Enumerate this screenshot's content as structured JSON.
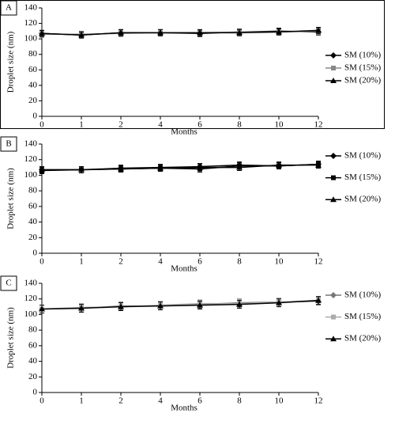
{
  "chart_data": [
    {
      "type": "line",
      "label": "A",
      "y_label": "Droplet size (nm)",
      "x_label": "Months",
      "categories": [
        "0",
        "1",
        "2",
        "4",
        "6",
        "8",
        "10",
        "12"
      ],
      "series": [
        {
          "name": "SM (10%)",
          "color": "#000000",
          "marker": "diamond",
          "values": [
            107,
            105,
            108,
            108,
            107,
            109,
            110,
            109
          ],
          "errors": [
            4,
            4,
            4,
            4,
            4,
            4,
            4,
            4
          ]
        },
        {
          "name": "SM (15%)",
          "color": "#888888",
          "marker": "square",
          "values": [
            106,
            106,
            107,
            108,
            108,
            109,
            109,
            110
          ],
          "errors": [
            4,
            4,
            4,
            4,
            4,
            4,
            4,
            4
          ]
        },
        {
          "name": "SM (20%)",
          "color": "#000000",
          "marker": "triangle",
          "values": [
            107,
            105,
            108,
            108,
            108,
            108,
            109,
            111
          ],
          "errors": [
            4,
            4,
            4,
            4,
            4,
            4,
            4,
            4
          ]
        }
      ],
      "ylim": [
        0,
        140
      ],
      "yticks": [
        0,
        20,
        40,
        60,
        80,
        100,
        120,
        140
      ],
      "legend": "right"
    },
    {
      "type": "line",
      "label": "B",
      "y_label": "Droplet size (nm)",
      "x_label": "Months",
      "categories": [
        "0",
        "1",
        "2",
        "4",
        "6",
        "8",
        "10",
        "12"
      ],
      "series": [
        {
          "name": "SM (10%)",
          "color": "#000000",
          "marker": "diamond",
          "values": [
            107,
            107,
            109,
            110,
            111,
            113,
            112,
            114
          ],
          "errors": [
            4,
            4,
            4,
            4,
            4,
            4,
            4,
            4
          ]
        },
        {
          "name": "SM (15%)",
          "color": "#000000",
          "marker": "square",
          "values": [
            106,
            107,
            108,
            109,
            108,
            112,
            112,
            114
          ],
          "errors": [
            4,
            4,
            4,
            4,
            4,
            4,
            4,
            4
          ]
        },
        {
          "name": "SM (20%)",
          "color": "#000000",
          "marker": "triangle",
          "values": [
            107,
            107,
            108,
            109,
            110,
            110,
            113,
            113
          ],
          "errors": [
            4,
            4,
            4,
            4,
            4,
            4,
            4,
            4
          ]
        }
      ],
      "ylim": [
        0,
        140
      ],
      "yticks": [
        0,
        20,
        40,
        60,
        80,
        100,
        120,
        140
      ],
      "legend": "right"
    },
    {
      "type": "line",
      "label": "C",
      "y_label": "Droplet size (nm)",
      "x_label": "Months",
      "categories": [
        "0",
        "1",
        "2",
        "4",
        "6",
        "8",
        "10",
        "12"
      ],
      "series": [
        {
          "name": "SM (10%)",
          "color": "#777777",
          "marker": "diamond",
          "values": [
            107,
            108,
            111,
            111,
            113,
            115,
            116,
            117
          ],
          "errors": [
            5,
            5,
            5,
            5,
            5,
            5,
            5,
            5
          ]
        },
        {
          "name": "SM (15%)",
          "color": "#aaaaaa",
          "marker": "square",
          "values": [
            107,
            109,
            110,
            112,
            114,
            114,
            116,
            118
          ],
          "errors": [
            5,
            5,
            5,
            5,
            5,
            5,
            5,
            5
          ]
        },
        {
          "name": "SM (20%)",
          "color": "#000000",
          "marker": "triangle",
          "values": [
            107,
            108,
            110,
            111,
            112,
            113,
            115,
            118
          ],
          "errors": [
            5,
            5,
            5,
            5,
            5,
            5,
            5,
            5
          ]
        }
      ],
      "ylim": [
        0,
        140
      ],
      "yticks": [
        0,
        20,
        40,
        60,
        80,
        100,
        120,
        140
      ],
      "legend": "right"
    }
  ]
}
